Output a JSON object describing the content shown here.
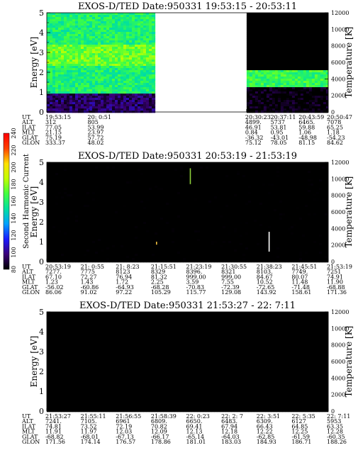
{
  "chart_data": [
    {
      "type": "heatmap",
      "title": "EXOS-D/TED   Date:950331   19:53:15 - 20:53:11",
      "ylabel": "Energy [eV]",
      "y2label": "Temperature [K]",
      "ylim": [
        0,
        5
      ],
      "y2lim": [
        0,
        12000
      ],
      "y_ticks": [
        "0",
        "1",
        "2",
        "3",
        "4",
        "5"
      ],
      "y2_ticks": [
        "0",
        "2000",
        "4000",
        "6000",
        "8000",
        "10000",
        "12000"
      ],
      "gap": [
        0.385,
        0.71
      ],
      "blocks": [
        {
          "x0": 0.0,
          "x1": 0.385,
          "levels": [
            [
              0.0,
              0.9,
              95
            ],
            [
              0.9,
              2.3,
              160
            ],
            [
              2.3,
              3.4,
              175
            ],
            [
              3.4,
              5.0,
              160
            ]
          ]
        },
        {
          "x0": 0.71,
          "x1": 1.0,
          "levels": [
            [
              0.0,
              1.2,
              80
            ],
            [
              1.2,
              2.1,
              165
            ],
            [
              2.1,
              5.0,
              60
            ]
          ]
        }
      ],
      "table": {
        "row_labels": [
          "UT",
          "ALT",
          "ILAT",
          "MLT",
          "GLAT",
          "GLON"
        ],
        "columns": [
          {
            "pos": 0.0,
            "values": [
              "19:53:15",
              "312",
              "77.05",
              "21.15",
              "75.19",
              "333.37"
            ]
          },
          {
            "pos": 0.15,
            "values": [
              "20: 0:51",
              "805",
              "53.99",
              "23.97",
              "57.72",
              "48.02"
            ]
          },
          {
            "pos": 0.71,
            "values": [
              "20:30:23",
              "4899.",
              "46.91",
              "0.84",
              "-36.32",
              "75.12"
            ]
          },
          {
            "pos": 0.8,
            "values": [
              "20:37:11",
              "5737",
              "53.81",
              "0.95",
              "-43.01",
              "78.05"
            ]
          },
          {
            "pos": 0.9,
            "values": [
              "20:43:59",
              "6465.",
              "59.88",
              "1.06",
              "-48.98",
              "81.15"
            ]
          },
          {
            "pos": 1.0,
            "values": [
              "20:50:47",
              "7078",
              "65.25",
              "1.18",
              "-54.23",
              "84.62"
            ]
          }
        ]
      }
    },
    {
      "type": "heatmap",
      "title": "EXOS-D/TED   Date:950331   20:53:19 - 21:53:19",
      "ylabel": "Energy [eV]",
      "y2label": "Temperature [K]",
      "ylim": [
        0,
        5
      ],
      "y2lim": [
        0,
        12000
      ],
      "y_ticks": [
        "0",
        "1",
        "2",
        "3",
        "4",
        "5"
      ],
      "y2_ticks": [
        "0",
        "2000",
        "4000",
        "6000",
        "8000",
        "10000",
        "12000"
      ],
      "gap": null,
      "blocks": [
        {
          "x0": 0.0,
          "x1": 1.0,
          "levels": [
            [
              0.0,
              5.0,
              70
            ]
          ]
        }
      ],
      "features": [
        {
          "x": 0.51,
          "y0": 3.9,
          "y1": 4.7,
          "color": "#8ed03a"
        },
        {
          "x": 0.79,
          "y0": 0.5,
          "y1": 1.5,
          "color": "#ffffff"
        },
        {
          "x": 0.39,
          "y0": 0.85,
          "y1": 1.0,
          "color": "#f0c040"
        }
      ],
      "table": {
        "row_labels": [
          "UT",
          "ALT",
          "ILAT",
          "MLT",
          "GLAT",
          "GLON"
        ],
        "columns": [
          {
            "pos": 0.0,
            "values": [
              "20:53:19",
              "7277.",
              "67.10",
              "1.23",
              "-56.02",
              "86.06"
            ]
          },
          {
            "pos": 0.125,
            "values": [
              "21: 0:55",
              "7775",
              "72.27",
              "1.43",
              "-60.86",
              "91.02"
            ]
          },
          {
            "pos": 0.25,
            "values": [
              "21: 8:23",
              "8123",
              "76.94",
              "1.72",
              "-64.93",
              "97.22"
            ]
          },
          {
            "pos": 0.375,
            "values": [
              "21:15:51",
              "8329",
              "81.32",
              "2.25",
              "-68.28",
              "105.29"
            ]
          },
          {
            "pos": 0.5,
            "values": [
              "21:23:19",
              "8396.",
              "999.00",
              "3.59",
              "-70.83",
              "115.77"
            ]
          },
          {
            "pos": 0.625,
            "values": [
              "21:30:55",
              "8321",
              "999.00",
              "7.55",
              "-72.39",
              "129.08"
            ]
          },
          {
            "pos": 0.75,
            "values": [
              "21:38:23",
              "8103.",
              "84.67",
              "10.52",
              "-72.65",
              "143.92"
            ]
          },
          {
            "pos": 0.875,
            "values": [
              "21:45:51",
              "7749.",
              "80.07",
              "11.48",
              "-71.48",
              "158.61"
            ]
          },
          {
            "pos": 1.0,
            "values": [
              "21:53:19",
              "7251",
              "74.91",
              "11.90",
              "-68.88",
              "171.36"
            ]
          }
        ]
      }
    },
    {
      "type": "heatmap",
      "title": "EXOS-D/TED   Date:950331   21:53:27 - 22: 7:11",
      "ylabel": "Energy [eV]",
      "y2label": "Temperature [K]",
      "ylim": [
        0,
        5
      ],
      "y2lim": [
        0,
        12000
      ],
      "y_ticks": [
        "0",
        "1",
        "2",
        "3",
        "4",
        "5"
      ],
      "y2_ticks": [
        "0",
        "2000",
        "4000",
        "6000",
        "8000",
        "10000",
        "12000"
      ],
      "gap": null,
      "blocks": [
        {
          "x0": 0.0,
          "x1": 1.0,
          "levels": [
            [
              0.0,
              5.0,
              68
            ]
          ]
        }
      ],
      "table": {
        "row_labels": [
          "UT",
          "ALT",
          "ILAT",
          "MLT",
          "GLAT",
          "GLON"
        ],
        "columns": [
          {
            "pos": 0.0,
            "values": [
              "21:53:27",
              "7241.",
              "74.81",
              "11.91",
              "-68.82",
              "171.56"
            ]
          },
          {
            "pos": 0.125,
            "values": [
              "21:55:11",
              "7105.",
              "73.52",
              "11.97",
              "-68.01",
              "174.14"
            ]
          },
          {
            "pos": 0.25,
            "values": [
              "21:56:55",
              "6961",
              "72.19",
              "12.03",
              "-67.13",
              "176.57"
            ]
          },
          {
            "pos": 0.375,
            "values": [
              "21:58:39",
              "6809.",
              "70.82",
              "12.09",
              "-66.17",
              "178.86"
            ]
          },
          {
            "pos": 0.5,
            "values": [
              "22: 0:23",
              "6650.",
              "69.41",
              "12.13",
              "-65.14",
              "181.01"
            ]
          },
          {
            "pos": 0.625,
            "values": [
              "22: 2: 7",
              "6483.",
              "67.94",
              "12.18",
              "-64.03",
              "183.03"
            ]
          },
          {
            "pos": 0.75,
            "values": [
              "22: 3:51",
              "6309.",
              "66.43",
              "12.22",
              "-62.85",
              "184.93"
            ]
          },
          {
            "pos": 0.875,
            "values": [
              "22: 5:35",
              "6127",
              "64.85",
              "12.25",
              "-61.59",
              "186.71"
            ]
          },
          {
            "pos": 1.0,
            "values": [
              "22: 7:11",
              "5953",
              "63.35",
              "12.28",
              "-60.35",
              "188.26"
            ]
          }
        ]
      }
    }
  ],
  "colorbar": {
    "label": "Second Harmonic Current",
    "range": [
      80,
      240
    ],
    "ticks": [
      "80",
      "100",
      "120",
      "140",
      "160",
      "180",
      "200",
      "220",
      "240"
    ],
    "stops": [
      "#000000",
      "#3a0078",
      "#1a1aff",
      "#00a0ff",
      "#00e0a0",
      "#40ff40",
      "#c0ff00",
      "#ffe000",
      "#ff4000",
      "#ff0000"
    ]
  }
}
